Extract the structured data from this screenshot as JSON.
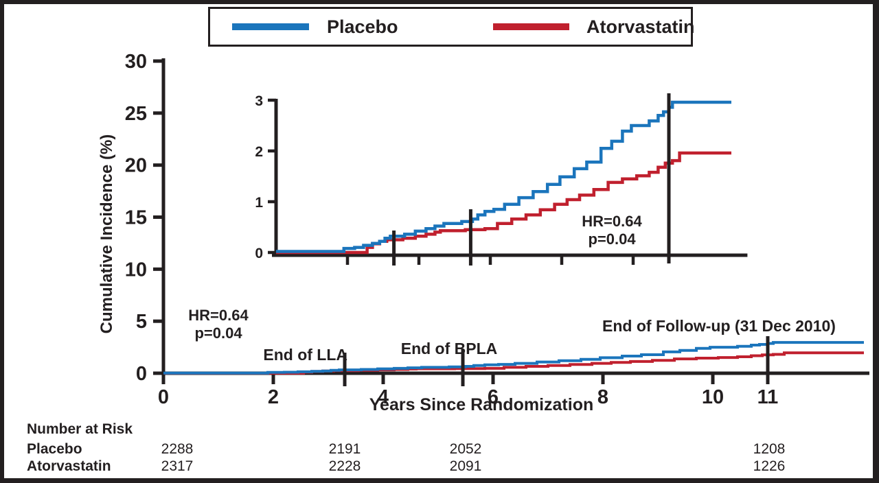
{
  "legend": {
    "items": [
      {
        "label": "Placebo",
        "color": "#1b75bc"
      },
      {
        "label": "Atorvastatin",
        "color": "#c0202e"
      }
    ]
  },
  "axes_titles": {
    "ylabel": "Cumulative Incidence (%)",
    "xlabel": "Years Since Randomization"
  },
  "annotations": {
    "main_hr": "HR=0.64",
    "main_p": "p=0.04",
    "inset_hr": "HR=0.64",
    "inset_p": "p=0.04"
  },
  "event_labels": {
    "lla": "End of LLA",
    "bpla": "End of BPLA",
    "followup": "End of Follow-up (31 Dec 2010)"
  },
  "risk_table": {
    "title": "Number at Risk",
    "rows": [
      {
        "label": "Placebo",
        "values": [
          "2288",
          "2191",
          "2052",
          "1208"
        ]
      },
      {
        "label": "Atorvastatin",
        "values": [
          "2317",
          "2228",
          "2091",
          "1226"
        ]
      }
    ]
  },
  "chart_data": {
    "type": "line",
    "subtype": "kaplan-meier-cumulative-incidence-steps",
    "title": "",
    "xlabel": "Years Since Randomization",
    "ylabel": "Cumulative Incidence (%)",
    "main_axis": {
      "xlim": [
        0,
        12.85
      ],
      "ylim": [
        0,
        30
      ],
      "xticks": [
        0,
        2,
        4,
        6,
        8,
        10,
        11
      ],
      "yticks": [
        0,
        5,
        10,
        15,
        20,
        25,
        30
      ],
      "grid": false
    },
    "inset_axis": {
      "xlim": [
        0,
        13.2
      ],
      "ylim": [
        0,
        3
      ],
      "xticks": [
        2,
        4,
        6,
        8,
        10
      ],
      "yticks": [
        0,
        1,
        2,
        3
      ],
      "grid": false
    },
    "event_markers": [
      {
        "label": "End of LLA",
        "year": 3.3
      },
      {
        "label": "End of BPLA",
        "year": 5.45
      },
      {
        "label": "End of Follow-up (31 Dec 2010)",
        "year": 11
      }
    ],
    "hazard_ratio": "HR=0.64",
    "p_value": "p=0.04",
    "series": [
      {
        "name": "Atorvastatin",
        "color": "#c0202e",
        "points": [
          [
            0,
            0
          ],
          [
            2.5,
            0
          ],
          [
            2.55,
            0.1
          ],
          [
            2.7,
            0.17
          ],
          [
            2.9,
            0.22
          ],
          [
            3.1,
            0.25
          ],
          [
            3.55,
            0.28
          ],
          [
            3.9,
            0.32
          ],
          [
            4.2,
            0.36
          ],
          [
            4.45,
            0.4
          ],
          [
            4.6,
            0.43
          ],
          [
            5.3,
            0.45
          ],
          [
            5.85,
            0.47
          ],
          [
            6.2,
            0.57
          ],
          [
            6.6,
            0.66
          ],
          [
            7.0,
            0.74
          ],
          [
            7.4,
            0.84
          ],
          [
            7.8,
            0.95
          ],
          [
            8.15,
            1.04
          ],
          [
            8.5,
            1.13
          ],
          [
            8.9,
            1.24
          ],
          [
            9.3,
            1.38
          ],
          [
            9.7,
            1.45
          ],
          [
            10.1,
            1.51
          ],
          [
            10.45,
            1.58
          ],
          [
            10.7,
            1.68
          ],
          [
            10.9,
            1.76
          ],
          [
            11.1,
            1.81
          ],
          [
            11.3,
            1.96
          ],
          [
            12.75,
            1.96
          ]
        ]
      },
      {
        "name": "Placebo",
        "color": "#1b75bc",
        "points": [
          [
            0,
            0.02
          ],
          [
            1.85,
            0.02
          ],
          [
            1.9,
            0.08
          ],
          [
            2.2,
            0.1
          ],
          [
            2.45,
            0.14
          ],
          [
            2.7,
            0.18
          ],
          [
            2.9,
            0.22
          ],
          [
            3.05,
            0.28
          ],
          [
            3.2,
            0.32
          ],
          [
            3.6,
            0.36
          ],
          [
            3.9,
            0.42
          ],
          [
            4.2,
            0.47
          ],
          [
            4.45,
            0.52
          ],
          [
            4.7,
            0.57
          ],
          [
            5.2,
            0.61
          ],
          [
            5.5,
            0.66
          ],
          [
            5.65,
            0.74
          ],
          [
            5.85,
            0.81
          ],
          [
            6.1,
            0.85
          ],
          [
            6.4,
            0.95
          ],
          [
            6.8,
            1.08
          ],
          [
            7.2,
            1.2
          ],
          [
            7.6,
            1.34
          ],
          [
            7.95,
            1.49
          ],
          [
            8.35,
            1.65
          ],
          [
            8.7,
            1.78
          ],
          [
            9.1,
            2.05
          ],
          [
            9.4,
            2.19
          ],
          [
            9.7,
            2.39
          ],
          [
            9.95,
            2.5
          ],
          [
            10.45,
            2.59
          ],
          [
            10.7,
            2.7
          ],
          [
            10.85,
            2.77
          ],
          [
            11.0,
            2.86
          ],
          [
            11.1,
            2.96
          ],
          [
            12.75,
            2.96
          ]
        ]
      }
    ]
  }
}
